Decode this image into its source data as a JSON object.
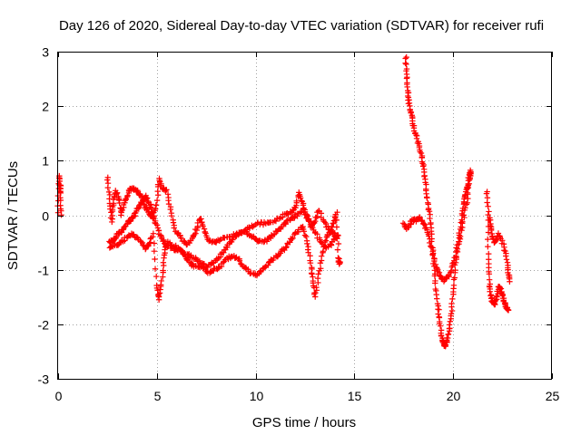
{
  "chart_data": {
    "type": "scatter",
    "title": "Day 126 of 2020, Sidereal Day-to-day VTEC variation (SDTVAR) for receiver rufi",
    "xlabel": "GPS time / hours",
    "ylabel": "SDTVAR / TECUs",
    "xlim": [
      0,
      25
    ],
    "ylim": [
      -3,
      3
    ],
    "xticks": [
      0,
      5,
      10,
      15,
      20,
      25
    ],
    "yticks": [
      -3,
      -2,
      -1,
      0,
      1,
      2,
      3
    ],
    "grid": true,
    "marker": "+",
    "color": "#ff0000",
    "series": [
      {
        "name": "SDTVAR",
        "segments": [
          [
            [
              0.0,
              0.05
            ],
            [
              0.05,
              0.7
            ],
            [
              0.1,
              0.55
            ],
            [
              0.13,
              0.4
            ],
            [
              0.16,
              0.0
            ]
          ],
          [
            [
              2.5,
              0.7
            ],
            [
              2.6,
              0.3
            ],
            [
              2.7,
              -0.1
            ],
            [
              2.8,
              0.2
            ],
            [
              2.9,
              0.45
            ],
            [
              3.1,
              0.3
            ],
            [
              3.2,
              0.0
            ],
            [
              3.4,
              0.25
            ],
            [
              3.6,
              0.45
            ],
            [
              3.8,
              0.5
            ],
            [
              4.0,
              0.45
            ],
            [
              4.2,
              0.35
            ],
            [
              4.4,
              0.15
            ],
            [
              4.6,
              0.05
            ],
            [
              4.8,
              -0.05
            ],
            [
              5.0,
              0.2
            ],
            [
              5.1,
              0.65
            ],
            [
              5.3,
              0.5
            ],
            [
              5.5,
              0.45
            ],
            [
              5.7,
              0.1
            ],
            [
              5.9,
              -0.25
            ],
            [
              6.2,
              -0.4
            ],
            [
              6.5,
              -0.55
            ],
            [
              6.8,
              -0.45
            ],
            [
              7.0,
              -0.25
            ],
            [
              7.2,
              -0.05
            ],
            [
              7.4,
              -0.25
            ],
            [
              7.6,
              -0.45
            ],
            [
              7.9,
              -0.5
            ],
            [
              8.2,
              -0.45
            ],
            [
              8.6,
              -0.4
            ],
            [
              9.0,
              -0.35
            ],
            [
              9.4,
              -0.3
            ],
            [
              9.8,
              -0.2
            ],
            [
              10.2,
              -0.15
            ],
            [
              10.6,
              -0.15
            ],
            [
              11.0,
              -0.1
            ],
            [
              11.4,
              0.0
            ],
            [
              11.8,
              0.05
            ],
            [
              12.0,
              0.15
            ],
            [
              12.2,
              0.4
            ],
            [
              12.4,
              0.2
            ],
            [
              12.6,
              0.0
            ],
            [
              12.8,
              -0.2
            ],
            [
              13.0,
              -0.1
            ],
            [
              13.2,
              0.1
            ],
            [
              13.5,
              -0.15
            ],
            [
              13.8,
              -0.3
            ],
            [
              14.0,
              -0.35
            ],
            [
              14.1,
              -0.45
            ]
          ],
          [
            [
              2.6,
              -0.5
            ],
            [
              2.8,
              -0.45
            ],
            [
              3.0,
              -0.35
            ],
            [
              3.2,
              -0.3
            ],
            [
              3.4,
              -0.2
            ],
            [
              3.6,
              -0.1
            ],
            [
              3.8,
              -0.05
            ],
            [
              4.0,
              0.1
            ],
            [
              4.2,
              0.2
            ],
            [
              4.4,
              0.35
            ],
            [
              4.5,
              0.3
            ],
            [
              4.7,
              0.15
            ],
            [
              4.9,
              -0.1
            ],
            [
              5.1,
              -0.3
            ],
            [
              5.3,
              -0.45
            ],
            [
              5.5,
              -0.55
            ],
            [
              5.8,
              -0.6
            ],
            [
              6.1,
              -0.65
            ],
            [
              6.4,
              -0.7
            ],
            [
              6.7,
              -0.75
            ],
            [
              7.0,
              -0.8
            ],
            [
              7.3,
              -0.9
            ],
            [
              7.6,
              -0.95
            ],
            [
              7.9,
              -0.85
            ],
            [
              8.2,
              -0.75
            ],
            [
              8.5,
              -0.6
            ],
            [
              8.8,
              -0.45
            ],
            [
              9.1,
              -0.35
            ],
            [
              9.4,
              -0.3
            ],
            [
              9.7,
              -0.35
            ],
            [
              10.0,
              -0.45
            ],
            [
              10.3,
              -0.5
            ],
            [
              10.6,
              -0.45
            ],
            [
              10.9,
              -0.35
            ],
            [
              11.2,
              -0.25
            ],
            [
              11.5,
              -0.15
            ],
            [
              11.8,
              -0.05
            ],
            [
              12.1,
              0.0
            ],
            [
              12.4,
              0.1
            ],
            [
              12.7,
              -0.1
            ],
            [
              13.0,
              -0.3
            ],
            [
              13.3,
              -0.5
            ],
            [
              13.6,
              -0.6
            ],
            [
              13.9,
              -0.5
            ],
            [
              14.2,
              -0.35
            ]
          ],
          [
            [
              2.6,
              -0.6
            ],
            [
              2.9,
              -0.55
            ],
            [
              3.2,
              -0.5
            ],
            [
              3.5,
              -0.4
            ],
            [
              3.8,
              -0.35
            ],
            [
              4.1,
              -0.45
            ],
            [
              4.4,
              -0.6
            ],
            [
              4.6,
              -0.55
            ],
            [
              4.8,
              -0.35
            ],
            [
              5.0,
              -1.3
            ],
            [
              5.1,
              -1.55
            ],
            [
              5.25,
              -1.2
            ],
            [
              5.35,
              -0.8
            ],
            [
              5.5,
              -0.5
            ],
            [
              5.8,
              -0.55
            ],
            [
              6.1,
              -0.6
            ],
            [
              6.4,
              -0.75
            ],
            [
              6.7,
              -0.9
            ],
            [
              7.0,
              -0.95
            ],
            [
              7.3,
              -0.95
            ],
            [
              7.6,
              -1.05
            ],
            [
              7.9,
              -1.0
            ],
            [
              8.2,
              -0.95
            ],
            [
              8.5,
              -0.8
            ],
            [
              8.8,
              -0.75
            ],
            [
              9.1,
              -0.8
            ],
            [
              9.4,
              -0.95
            ],
            [
              9.7,
              -1.05
            ],
            [
              10.0,
              -1.1
            ],
            [
              10.3,
              -1.0
            ],
            [
              10.6,
              -0.9
            ],
            [
              10.9,
              -0.8
            ],
            [
              11.2,
              -0.7
            ],
            [
              11.5,
              -0.6
            ],
            [
              11.8,
              -0.45
            ],
            [
              12.1,
              -0.3
            ],
            [
              12.4,
              -0.2
            ],
            [
              12.6,
              -0.5
            ],
            [
              12.8,
              -0.9
            ],
            [
              12.9,
              -1.2
            ],
            [
              13.0,
              -1.5
            ],
            [
              13.2,
              -1.1
            ],
            [
              13.4,
              -0.7
            ],
            [
              13.6,
              -0.4
            ],
            [
              13.8,
              -0.25
            ],
            [
              14.0,
              -0.1
            ],
            [
              14.1,
              0.05
            ],
            [
              14.2,
              -0.8
            ],
            [
              14.25,
              -0.9
            ]
          ],
          [
            [
              17.5,
              -0.15
            ],
            [
              17.7,
              -0.25
            ],
            [
              17.9,
              -0.1
            ],
            [
              18.1,
              -0.1
            ],
            [
              18.3,
              -0.05
            ],
            [
              18.5,
              -0.15
            ],
            [
              18.7,
              -0.3
            ],
            [
              18.9,
              -0.6
            ],
            [
              19.1,
              -0.9
            ],
            [
              19.3,
              -1.1
            ],
            [
              19.5,
              -1.2
            ],
            [
              19.7,
              -1.15
            ],
            [
              19.9,
              -1.0
            ],
            [
              20.1,
              -0.8
            ],
            [
              20.3,
              -0.5
            ],
            [
              20.5,
              -0.1
            ],
            [
              20.7,
              0.25
            ],
            [
              20.8,
              0.6
            ],
            [
              20.9,
              0.8
            ]
          ],
          [
            [
              17.6,
              2.9
            ],
            [
              17.65,
              2.6
            ],
            [
              17.7,
              2.3
            ],
            [
              17.75,
              2.1
            ],
            [
              17.85,
              1.9
            ],
            [
              17.95,
              1.7
            ],
            [
              18.1,
              1.5
            ],
            [
              18.25,
              1.3
            ],
            [
              18.4,
              1.1
            ],
            [
              18.5,
              0.9
            ],
            [
              18.6,
              0.6
            ],
            [
              18.7,
              0.3
            ],
            [
              18.8,
              0.0
            ],
            [
              18.9,
              -0.35
            ],
            [
              19.0,
              -0.8
            ],
            [
              19.1,
              -1.2
            ],
            [
              19.2,
              -1.6
            ],
            [
              19.3,
              -1.9
            ],
            [
              19.4,
              -2.2
            ],
            [
              19.5,
              -2.35
            ],
            [
              19.6,
              -2.4
            ],
            [
              19.7,
              -2.3
            ],
            [
              19.8,
              -2.1
            ],
            [
              19.9,
              -1.8
            ],
            [
              20.0,
              -1.4
            ],
            [
              20.1,
              -1.0
            ],
            [
              20.2,
              -0.6
            ],
            [
              20.35,
              -0.25
            ],
            [
              20.5,
              0.1
            ],
            [
              20.6,
              0.35
            ],
            [
              20.7,
              0.5
            ],
            [
              20.8,
              0.7
            ],
            [
              20.9,
              0.8
            ]
          ],
          [
            [
              21.7,
              0.45
            ],
            [
              21.8,
              0.0
            ],
            [
              21.9,
              -0.2
            ],
            [
              22.0,
              -0.4
            ],
            [
              22.1,
              -0.5
            ],
            [
              22.3,
              -0.35
            ],
            [
              22.5,
              -0.5
            ],
            [
              22.7,
              -0.75
            ],
            [
              22.8,
              -1.05
            ],
            [
              22.85,
              -1.2
            ]
          ],
          [
            [
              21.75,
              -0.1
            ],
            [
              21.8,
              -0.8
            ],
            [
              21.85,
              -1.25
            ],
            [
              21.9,
              -1.5
            ],
            [
              22.0,
              -1.6
            ],
            [
              22.1,
              -1.65
            ],
            [
              22.2,
              -1.5
            ],
            [
              22.3,
              -1.3
            ],
            [
              22.4,
              -1.35
            ],
            [
              22.5,
              -1.45
            ],
            [
              22.6,
              -1.6
            ],
            [
              22.7,
              -1.7
            ],
            [
              22.8,
              -1.75
            ]
          ]
        ]
      }
    ]
  }
}
